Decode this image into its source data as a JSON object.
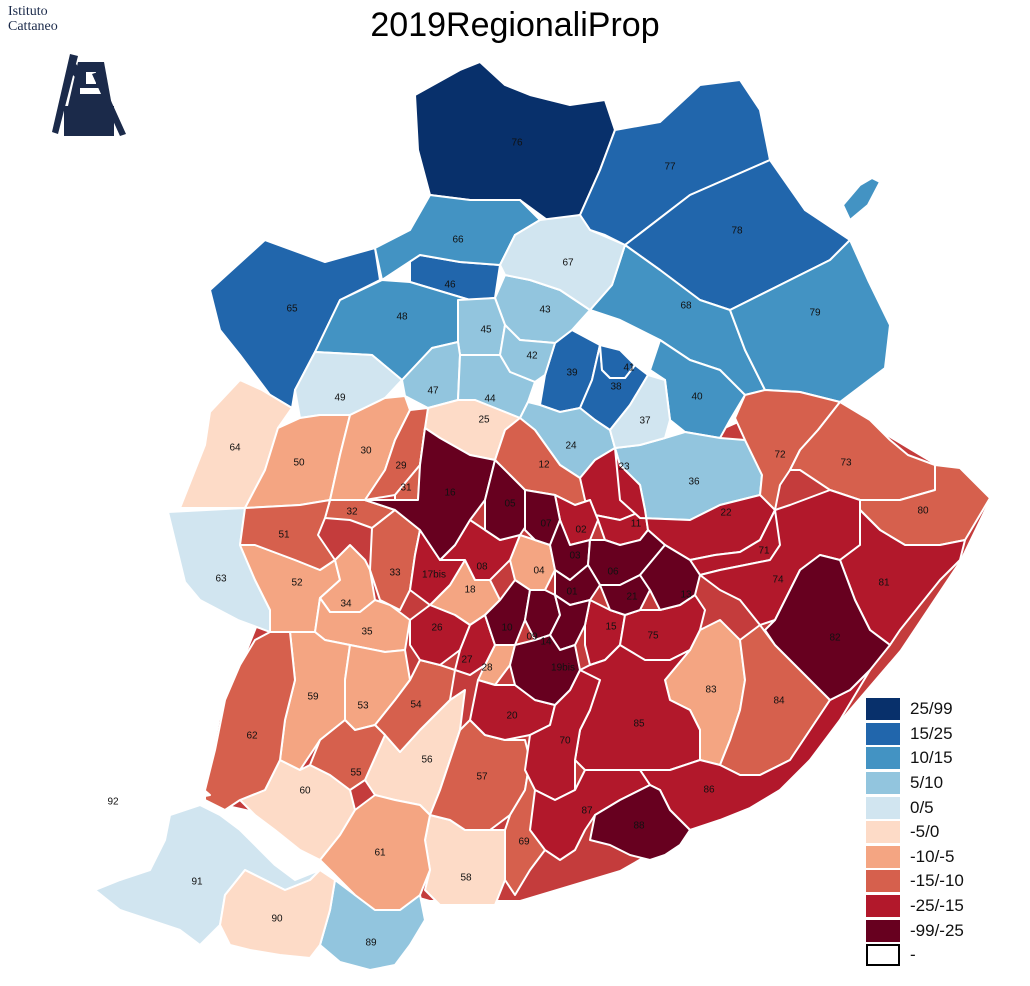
{
  "title": "2019RegionaliProp",
  "logo": {
    "line1": "Istituto",
    "line2": "Cattaneo",
    "icon": "windmill-icon"
  },
  "colors": {
    "25/99": "#08306b",
    "15/25": "#2166ac",
    "10/15": "#4393c3",
    "5/10": "#92c5de",
    "0/5": "#d1e5f0",
    "-5/0": "#fddbc7",
    "-10/-5": "#f4a582",
    "-15/-10": "#d6604d",
    "-25/-15": "#b2182b",
    "-99/-25": "#67001f",
    "-": "#ffffff"
  },
  "legend": [
    {
      "label": "25/99",
      "key": "25/99"
    },
    {
      "label": "15/25",
      "key": "15/25"
    },
    {
      "label": "10/15",
      "key": "10/15"
    },
    {
      "label": "5/10",
      "key": "5/10"
    },
    {
      "label": "0/5",
      "key": "0/5"
    },
    {
      "label": "-5/0",
      "key": "-5/0"
    },
    {
      "label": "-10/-5",
      "key": "-10/-5"
    },
    {
      "label": "-15/-10",
      "key": "-15/-10"
    },
    {
      "label": "-25/-15",
      "key": "-25/-15"
    },
    {
      "label": "-99/-25",
      "key": "-99/-25"
    },
    {
      "label": "-",
      "key": "-"
    }
  ],
  "zones": [
    {
      "id": "76",
      "class": "25/99"
    },
    {
      "id": "77",
      "class": "15/25"
    },
    {
      "id": "78",
      "class": "15/25"
    },
    {
      "id": "65",
      "class": "15/25"
    },
    {
      "id": "46",
      "class": "15/25"
    },
    {
      "id": "39",
      "class": "15/25"
    },
    {
      "id": "38",
      "class": "15/25"
    },
    {
      "id": "41",
      "class": "15/25"
    },
    {
      "id": "66",
      "class": "10/15"
    },
    {
      "id": "68",
      "class": "10/15"
    },
    {
      "id": "79",
      "class": "10/15"
    },
    {
      "id": "48",
      "class": "10/15"
    },
    {
      "id": "40",
      "class": "10/15"
    },
    {
      "id": "isle",
      "class": "10/15"
    },
    {
      "id": "43",
      "class": "5/10"
    },
    {
      "id": "45",
      "class": "5/10"
    },
    {
      "id": "42",
      "class": "5/10"
    },
    {
      "id": "47",
      "class": "5/10"
    },
    {
      "id": "44",
      "class": "5/10"
    },
    {
      "id": "24",
      "class": "5/10"
    },
    {
      "id": "36",
      "class": "5/10"
    },
    {
      "id": "89",
      "class": "5/10"
    },
    {
      "id": "67",
      "class": "0/5"
    },
    {
      "id": "49",
      "class": "0/5"
    },
    {
      "id": "37",
      "class": "0/5"
    },
    {
      "id": "63",
      "class": "0/5"
    },
    {
      "id": "91",
      "class": "0/5"
    },
    {
      "id": "64",
      "class": "-5/0"
    },
    {
      "id": "25",
      "class": "-5/0"
    },
    {
      "id": "56",
      "class": "-5/0"
    },
    {
      "id": "60",
      "class": "-5/0"
    },
    {
      "id": "58",
      "class": "-5/0"
    },
    {
      "id": "90",
      "class": "-5/0"
    },
    {
      "id": "50",
      "class": "-10/-5"
    },
    {
      "id": "30",
      "class": "-10/-5"
    },
    {
      "id": "52",
      "class": "-10/-5"
    },
    {
      "id": "34",
      "class": "-10/-5"
    },
    {
      "id": "35",
      "class": "-10/-5"
    },
    {
      "id": "59",
      "class": "-10/-5"
    },
    {
      "id": "53",
      "class": "-10/-5"
    },
    {
      "id": "61",
      "class": "-10/-5"
    },
    {
      "id": "83",
      "class": "-10/-5"
    },
    {
      "id": "18",
      "class": "-10/-5"
    },
    {
      "id": "28",
      "class": "-10/-5"
    },
    {
      "id": "04",
      "class": "-10/-5"
    },
    {
      "id": "29",
      "class": "-15/-10"
    },
    {
      "id": "31",
      "class": "-15/-10"
    },
    {
      "id": "32",
      "class": "-15/-10"
    },
    {
      "id": "51",
      "class": "-15/-10"
    },
    {
      "id": "33",
      "class": "-15/-10"
    },
    {
      "id": "12",
      "class": "-15/-10"
    },
    {
      "id": "62",
      "class": "-15/-10"
    },
    {
      "id": "54",
      "class": "-15/-10"
    },
    {
      "id": "55",
      "class": "-15/-10"
    },
    {
      "id": "57",
      "class": "-15/-10"
    },
    {
      "id": "69",
      "class": "-15/-10"
    },
    {
      "id": "72",
      "class": "-15/-10"
    },
    {
      "id": "73",
      "class": "-15/-10"
    },
    {
      "id": "80",
      "class": "-15/-10"
    },
    {
      "id": "84",
      "class": "-15/-10"
    },
    {
      "id": "23",
      "class": "-25/-15"
    },
    {
      "id": "11",
      "class": "-25/-15"
    },
    {
      "id": "22",
      "class": "-25/-15"
    },
    {
      "id": "71",
      "class": "-25/-15"
    },
    {
      "id": "74",
      "class": "-25/-15"
    },
    {
      "id": "81",
      "class": "-25/-15"
    },
    {
      "id": "17bis",
      "class": "-25/-15"
    },
    {
      "id": "08",
      "class": "-25/-15"
    },
    {
      "id": "02",
      "class": "-25/-15"
    },
    {
      "id": "26",
      "class": "-25/-15"
    },
    {
      "id": "27",
      "class": "-25/-15"
    },
    {
      "id": "20",
      "class": "-25/-15"
    },
    {
      "id": "15",
      "class": "-25/-15"
    },
    {
      "id": "75",
      "class": "-25/-15"
    },
    {
      "id": "85",
      "class": "-25/-15"
    },
    {
      "id": "70",
      "class": "-25/-15"
    },
    {
      "id": "86",
      "class": "-25/-15"
    },
    {
      "id": "87",
      "class": "-25/-15"
    },
    {
      "id": "16",
      "class": "-99/-25"
    },
    {
      "id": "05",
      "class": "-99/-25"
    },
    {
      "id": "07",
      "class": "-99/-25"
    },
    {
      "id": "03",
      "class": "-99/-25"
    },
    {
      "id": "06",
      "class": "-99/-25"
    },
    {
      "id": "01",
      "class": "-99/-25"
    },
    {
      "id": "21",
      "class": "-99/-25"
    },
    {
      "id": "13",
      "class": "-99/-25"
    },
    {
      "id": "10",
      "class": "-99/-25"
    },
    {
      "id": "09",
      "class": "-99/-25"
    },
    {
      "id": "14",
      "class": "-99/-25"
    },
    {
      "id": "19bis",
      "class": "-99/-25"
    },
    {
      "id": "82",
      "class": "-99/-25"
    },
    {
      "id": "88",
      "class": "-99/-25"
    },
    {
      "id": "92",
      "class": "-"
    }
  ]
}
